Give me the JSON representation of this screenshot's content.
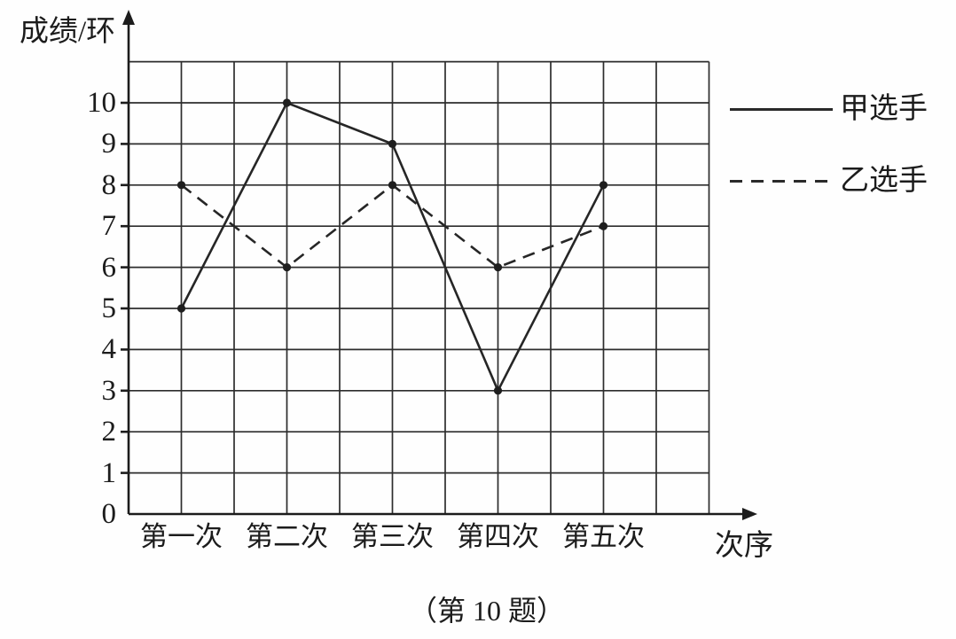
{
  "figure": {
    "y_axis_title": "成绩/环",
    "x_axis_title": "次序",
    "caption": "（第 10 题）"
  },
  "chart_data": {
    "type": "line",
    "title": "",
    "xlabel": "次序",
    "ylabel": "成绩/环",
    "categories": [
      "第一次",
      "第二次",
      "第三次",
      "第四次",
      "第五次"
    ],
    "series": [
      {
        "name": "甲选手",
        "style": "solid",
        "values": [
          5,
          10,
          9,
          3,
          8
        ]
      },
      {
        "name": "乙选手",
        "style": "dashed",
        "values": [
          8,
          6,
          8,
          6,
          7
        ]
      }
    ],
    "yticks": [
      0,
      1,
      2,
      3,
      4,
      5,
      6,
      7,
      8,
      9,
      10
    ],
    "ylim": [
      0,
      11
    ],
    "grid": true,
    "legend_position": "right",
    "line_color": "#262626"
  }
}
